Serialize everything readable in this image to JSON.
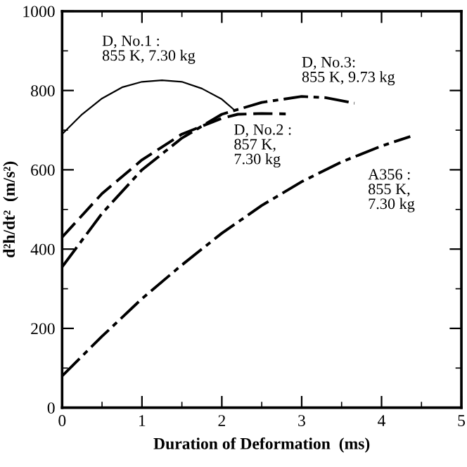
{
  "chart_data": {
    "type": "line",
    "xlabel": "Duration of Deformation  (ms)",
    "ylabel": "d²h/dt²  (m/s²)",
    "xlim": [
      0,
      5
    ],
    "ylim": [
      0,
      1000
    ],
    "xticks": [
      0,
      1,
      2,
      3,
      4,
      5
    ],
    "yticks": [
      0,
      200,
      400,
      600,
      800,
      1000
    ],
    "grid": false,
    "legend": false,
    "marker": "none",
    "annotations": [
      {
        "text": "D, No.1 :\n855 K, 7.30 kg",
        "x": 1.25,
        "y": 826
      },
      {
        "text": "D, No.2 :\n857 K,\n7.30 kg",
        "x": 2.2,
        "y": 740
      },
      {
        "text": "D, No.3:\n855 K, 9.73 kg",
        "x": 3,
        "y": 785
      },
      {
        "text": "A356 :\n855 K,\n7.30 kg",
        "x": 4,
        "y": 660
      }
    ],
    "series": [
      {
        "color": "#000000",
        "line_style": "solid",
        "x": [
          0,
          0.25,
          0.5,
          0.75,
          1,
          1.25,
          1.5,
          1.75,
          2,
          2.15
        ],
        "values": [
          690,
          740,
          780,
          808,
          822,
          826,
          822,
          805,
          778,
          752
        ]
      },
      {
        "color": "#000000",
        "line_style": "dashed",
        "x": [
          0,
          0.5,
          1,
          1.5,
          2,
          2.2,
          2.5,
          2.8
        ],
        "values": [
          430,
          540,
          625,
          690,
          730,
          740,
          742,
          741
        ]
      },
      {
        "color": "#000000",
        "line_style": "dashdot",
        "x": [
          0,
          0.5,
          1,
          1.5,
          2,
          2.5,
          3,
          3.3,
          3.66
        ],
        "values": [
          355,
          490,
          600,
          680,
          740,
          770,
          785,
          782,
          768
        ]
      },
      {
        "color": "#000000",
        "line_style": "dashdot",
        "x": [
          0,
          0.5,
          1,
          1.5,
          2,
          2.5,
          3,
          3.5,
          4,
          4.36
        ],
        "values": [
          80,
          180,
          275,
          360,
          440,
          510,
          570,
          620,
          660,
          684
        ]
      }
    ]
  }
}
